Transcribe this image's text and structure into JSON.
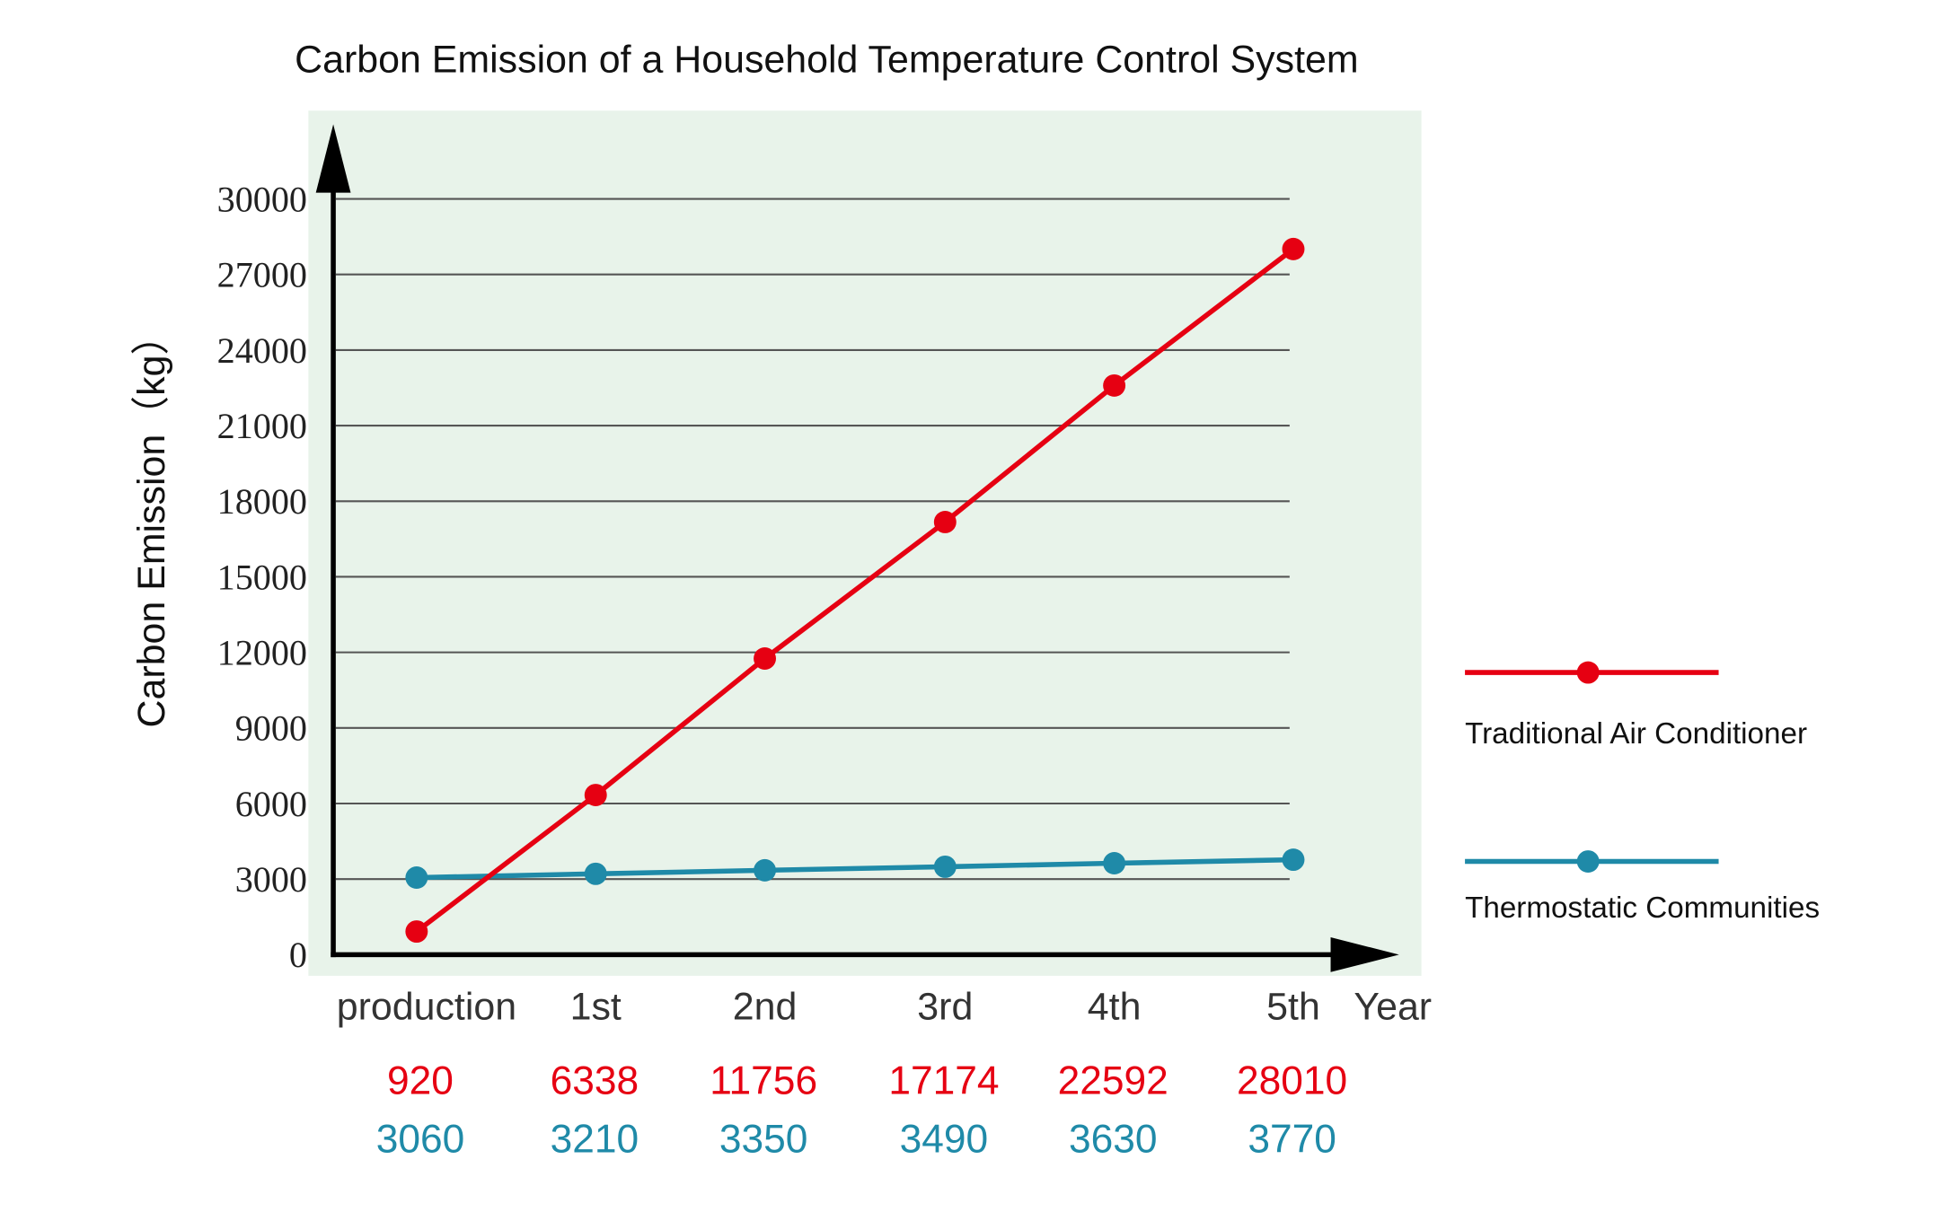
{
  "chart_data": {
    "type": "line",
    "title": "Carbon Emission of a Household Temperature Control System",
    "ylabel": "Carbon Emission（kg）",
    "xlabel": "Year",
    "ylim": [
      0,
      30000
    ],
    "yticks": [
      "0",
      "3000",
      "6000",
      "9000",
      "12000",
      "15000",
      "18000",
      "21000",
      "24000",
      "27000",
      "30000"
    ],
    "categories": [
      "production",
      "1st",
      "2nd",
      "3rd",
      "4th",
      "5th"
    ],
    "grid": true,
    "legend_placement": "right",
    "background": "#e8f3ea",
    "series": [
      {
        "name": "Traditional Air Conditioner",
        "color": "#e60012",
        "values": [
          920,
          6338,
          11756,
          17174,
          22592,
          28010
        ]
      },
      {
        "name": "Thermostatic Communities",
        "color": "#1f8aa8",
        "values": [
          3060,
          3210,
          3350,
          3490,
          3630,
          3770
        ]
      }
    ]
  }
}
